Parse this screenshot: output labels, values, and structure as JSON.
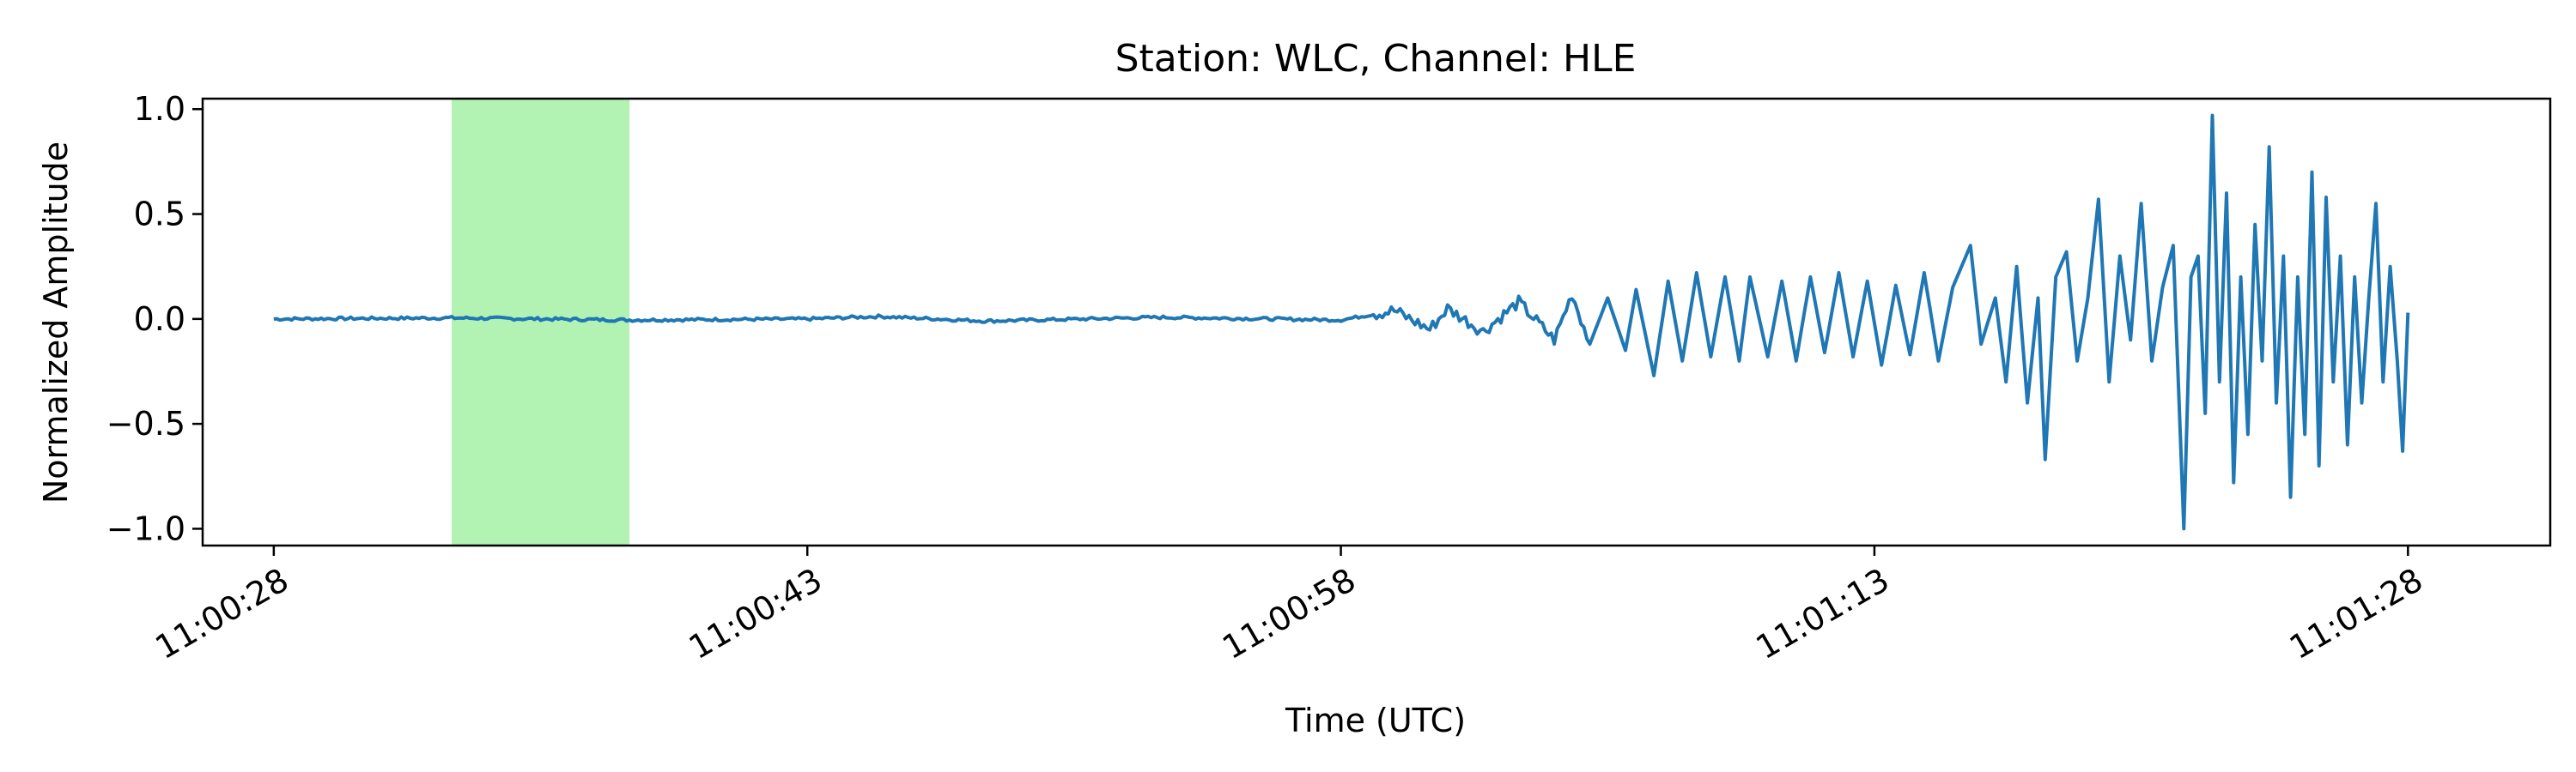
{
  "chart_data": {
    "type": "line",
    "title": "Station: WLC, Channel: HLE",
    "xlabel": "Time (UTC)",
    "ylabel": "Normalized Amplitude",
    "x_unit": "seconds",
    "xlim": [
      -2.0,
      64.0
    ],
    "ylim": [
      -1.08,
      1.05
    ],
    "x_ticks": [
      {
        "value": 0,
        "label": "11:00:28"
      },
      {
        "value": 15,
        "label": "11:00:43"
      },
      {
        "value": 30,
        "label": "11:00:58"
      },
      {
        "value": 45,
        "label": "11:01:13"
      },
      {
        "value": 60,
        "label": "11:01:28"
      }
    ],
    "y_ticks": [
      {
        "value": 1.0,
        "label": "1.0"
      },
      {
        "value": 0.5,
        "label": "0.5"
      },
      {
        "value": 0.0,
        "label": "0.0"
      },
      {
        "value": -0.5,
        "label": "−0.5"
      },
      {
        "value": -1.0,
        "label": "−1.0"
      }
    ],
    "highlight": {
      "x_start": 5.0,
      "x_end": 10.0,
      "color": "#b2f2b2"
    },
    "series": [
      {
        "color": "#1f77b4",
        "points": [
          [
            0.0,
            0.0
          ],
          [
            5.0,
            0.005
          ],
          [
            10.0,
            -0.005
          ],
          [
            15.0,
            0.0
          ],
          [
            17.0,
            0.012
          ],
          [
            20.0,
            -0.01
          ],
          [
            25.0,
            0.008
          ],
          [
            30.0,
            -0.005
          ],
          [
            31.5,
            0.04
          ],
          [
            32.5,
            -0.05
          ],
          [
            33.0,
            0.05
          ],
          [
            34.0,
            -0.06
          ],
          [
            35.0,
            0.08
          ],
          [
            36.0,
            -0.1
          ],
          [
            36.5,
            0.12
          ],
          [
            37.0,
            -0.12
          ],
          [
            37.5,
            0.1
          ],
          [
            38.0,
            -0.15
          ],
          [
            38.3,
            0.14
          ],
          [
            38.8,
            -0.27
          ],
          [
            39.2,
            0.18
          ],
          [
            39.6,
            -0.2
          ],
          [
            40.0,
            0.22
          ],
          [
            40.4,
            -0.18
          ],
          [
            40.8,
            0.2
          ],
          [
            41.2,
            -0.2
          ],
          [
            41.5,
            0.2
          ],
          [
            42.0,
            -0.18
          ],
          [
            42.4,
            0.18
          ],
          [
            42.8,
            -0.2
          ],
          [
            43.2,
            0.2
          ],
          [
            43.6,
            -0.16
          ],
          [
            44.0,
            0.22
          ],
          [
            44.4,
            -0.18
          ],
          [
            44.8,
            0.18
          ],
          [
            45.2,
            -0.22
          ],
          [
            45.6,
            0.16
          ],
          [
            46.0,
            -0.17
          ],
          [
            46.4,
            0.22
          ],
          [
            46.8,
            -0.2
          ],
          [
            47.2,
            0.15
          ],
          [
            47.7,
            0.35
          ],
          [
            48.0,
            -0.12
          ],
          [
            48.4,
            0.1
          ],
          [
            48.7,
            -0.3
          ],
          [
            49.0,
            0.25
          ],
          [
            49.3,
            -0.4
          ],
          [
            49.6,
            0.1
          ],
          [
            49.8,
            -0.67
          ],
          [
            50.1,
            0.2
          ],
          [
            50.4,
            0.32
          ],
          [
            50.7,
            -0.2
          ],
          [
            51.0,
            0.1
          ],
          [
            51.3,
            0.57
          ],
          [
            51.6,
            -0.3
          ],
          [
            51.9,
            0.3
          ],
          [
            52.2,
            -0.1
          ],
          [
            52.5,
            0.55
          ],
          [
            52.8,
            -0.2
          ],
          [
            53.1,
            0.15
          ],
          [
            53.4,
            0.35
          ],
          [
            53.7,
            -1.0
          ],
          [
            53.9,
            0.2
          ],
          [
            54.1,
            0.3
          ],
          [
            54.3,
            -0.45
          ],
          [
            54.5,
            0.97
          ],
          [
            54.7,
            -0.3
          ],
          [
            54.9,
            0.6
          ],
          [
            55.1,
            -0.78
          ],
          [
            55.3,
            0.2
          ],
          [
            55.5,
            -0.55
          ],
          [
            55.7,
            0.45
          ],
          [
            55.9,
            -0.2
          ],
          [
            56.1,
            0.82
          ],
          [
            56.3,
            -0.4
          ],
          [
            56.5,
            0.3
          ],
          [
            56.7,
            -0.85
          ],
          [
            56.9,
            0.2
          ],
          [
            57.1,
            -0.55
          ],
          [
            57.3,
            0.7
          ],
          [
            57.5,
            -0.7
          ],
          [
            57.7,
            0.58
          ],
          [
            57.9,
            -0.3
          ],
          [
            58.1,
            0.3
          ],
          [
            58.3,
            -0.6
          ],
          [
            58.5,
            0.2
          ],
          [
            58.7,
            -0.4
          ],
          [
            58.9,
            0.1
          ],
          [
            59.1,
            0.55
          ],
          [
            59.3,
            -0.3
          ],
          [
            59.5,
            0.25
          ],
          [
            59.7,
            -0.2
          ],
          [
            59.85,
            -0.63
          ],
          [
            60.0,
            0.03
          ]
        ]
      }
    ]
  }
}
